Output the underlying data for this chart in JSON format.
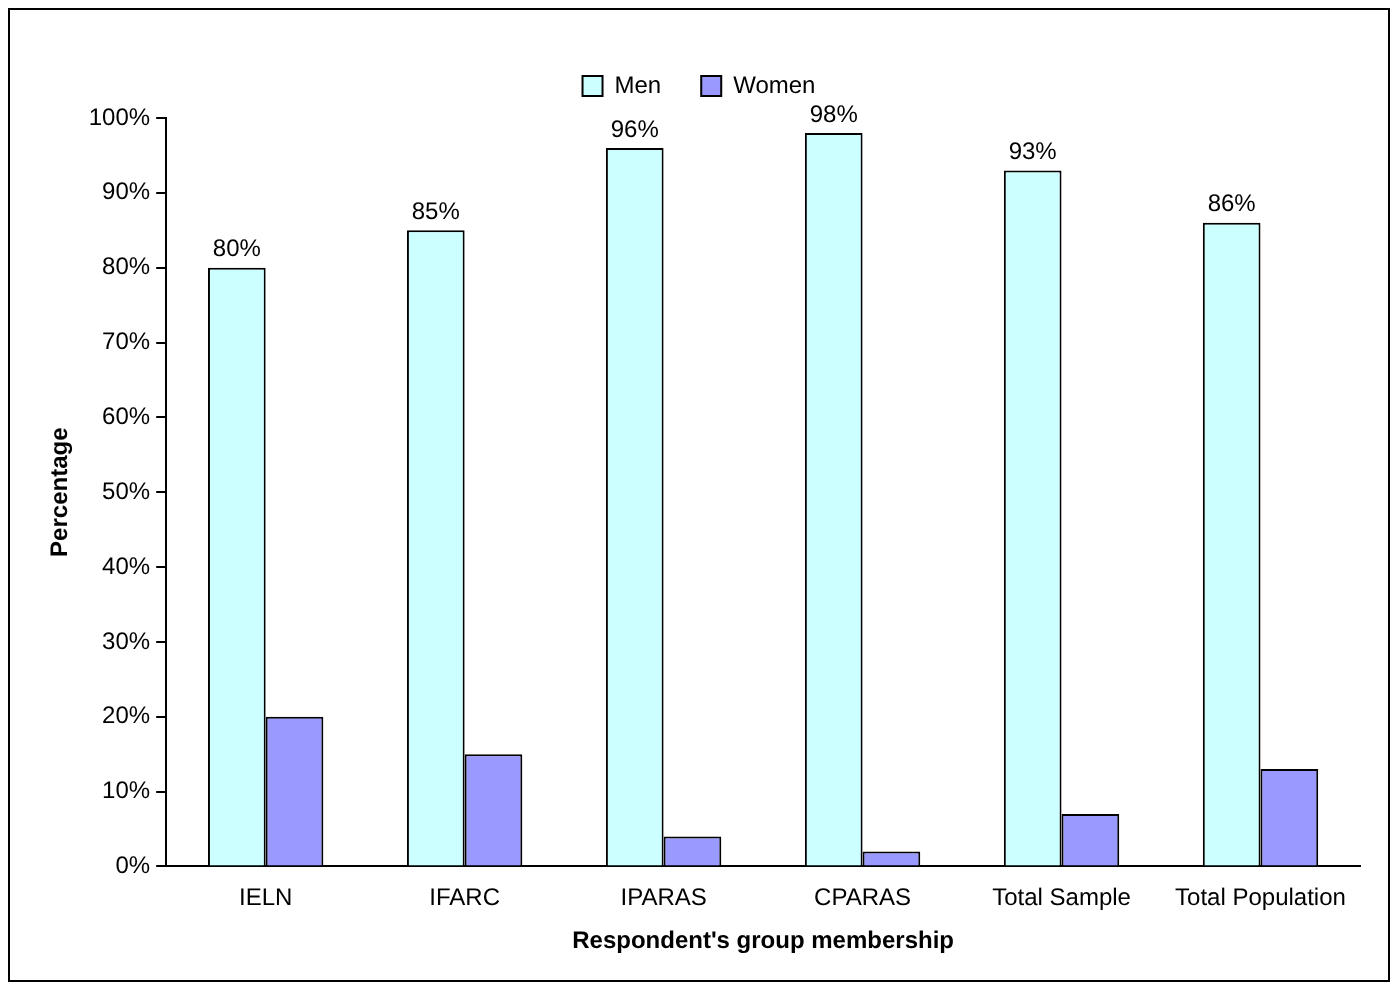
{
  "chart_data": {
    "type": "bar",
    "xlabel": "Respondent's group membership",
    "ylabel": "Percentage",
    "categories": [
      "IELN",
      "IFARC",
      "IPARAS",
      "CPARAS",
      "Total Sample",
      "Total Population"
    ],
    "series": [
      {
        "name": "Men",
        "color": "#ccffff",
        "values": [
          80,
          85,
          96,
          98,
          93,
          86
        ],
        "value_labels": [
          "80%",
          "85%",
          "96%",
          "98%",
          "93%",
          "86%"
        ]
      },
      {
        "name": "Women",
        "color": "#9999ff",
        "values": [
          20,
          15,
          4,
          2,
          7,
          13
        ]
      }
    ],
    "ylim": [
      0,
      100
    ],
    "yticks": [
      {
        "value": 0,
        "label": "0%"
      },
      {
        "value": 10,
        "label": "10%"
      },
      {
        "value": 20,
        "label": "20%"
      },
      {
        "value": 30,
        "label": "30%"
      },
      {
        "value": 40,
        "label": "40%"
      },
      {
        "value": 50,
        "label": "50%"
      },
      {
        "value": 60,
        "label": "60%"
      },
      {
        "value": 70,
        "label": "70%"
      },
      {
        "value": 80,
        "label": "80%"
      },
      {
        "value": 90,
        "label": "90%"
      },
      {
        "value": 100,
        "label": "100%"
      }
    ],
    "grid": false,
    "legend": "top"
  }
}
